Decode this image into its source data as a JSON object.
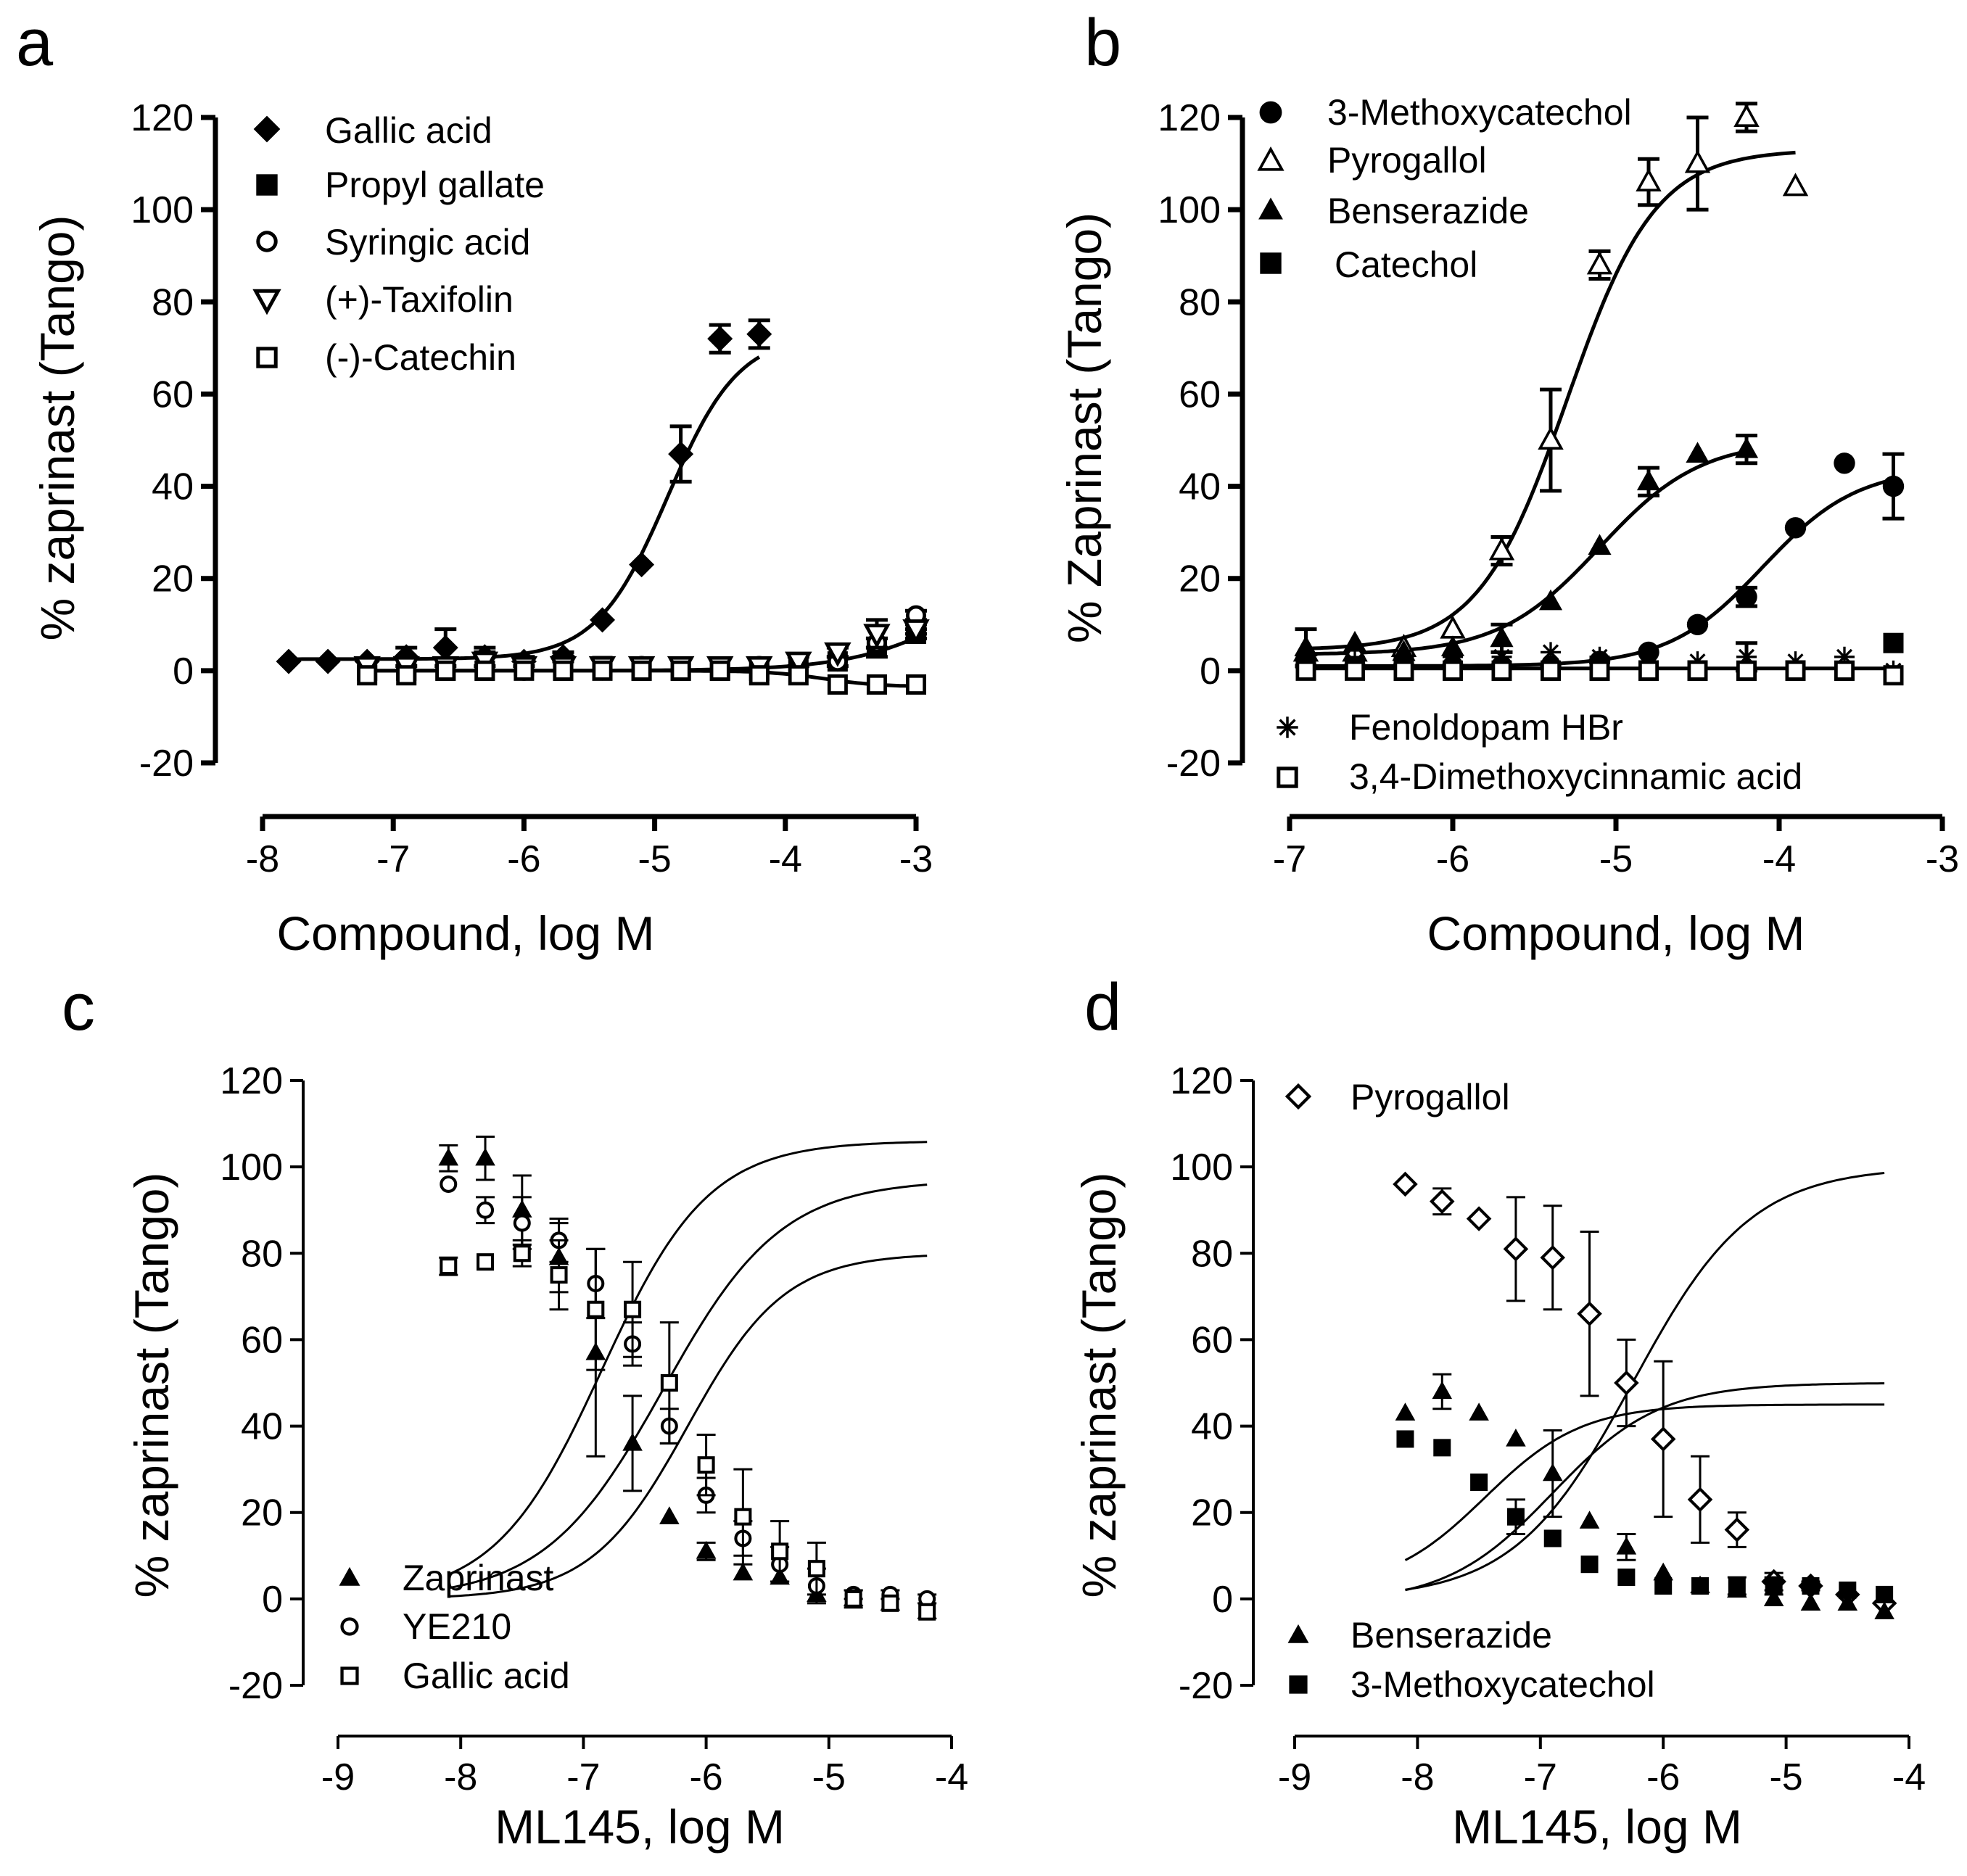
{
  "figure": {
    "panels": [
      "a",
      "b",
      "c",
      "d"
    ]
  },
  "chart_data": [
    {
      "panel": "a",
      "type": "scatter",
      "xlabel": "Compound, log M",
      "ylabel": "% zaprinast (Tango)",
      "xlim": [
        -8,
        -3
      ],
      "ylim": [
        -20,
        120
      ],
      "xticks": [
        -8,
        -7,
        -6,
        -5,
        -4,
        -3
      ],
      "yticks": [
        -20,
        0,
        20,
        40,
        60,
        80,
        100,
        120
      ],
      "legend_position": "top-left",
      "series": [
        {
          "name": "Gallic acid",
          "marker": "diamond-filled",
          "x": [
            -7.8,
            -7.5,
            -7.2,
            -6.9,
            -6.6,
            -6.3,
            -6.0,
            -5.7,
            -5.4,
            -5.1,
            -4.8,
            -4.5,
            -4.2
          ],
          "y": [
            2,
            2,
            2,
            3,
            5,
            3,
            2,
            3,
            11,
            23,
            47,
            72,
            73
          ],
          "err": [
            0,
            0,
            0,
            2,
            4,
            2,
            1,
            1,
            0,
            0,
            6,
            3,
            3
          ],
          "fit": {
            "bottom": 2.5,
            "top": 73,
            "logec50": -4.9,
            "hill": 1.6,
            "from": -7.8,
            "to": -4.2
          }
        },
        {
          "name": "Propyl gallate",
          "marker": "square-filled",
          "x": [
            -7.2,
            -6.9,
            -6.6,
            -6.3,
            -6.0,
            -5.7,
            -5.4,
            -5.1,
            -4.8,
            -4.5,
            -4.2,
            -3.9,
            -3.6,
            -3.3,
            -3.0
          ],
          "y": [
            0,
            0,
            0,
            0,
            1,
            0,
            1,
            0,
            0,
            0,
            0,
            1,
            2,
            5,
            8
          ],
          "err": [
            0,
            0,
            0,
            0,
            0,
            0,
            0,
            0,
            0,
            0,
            0,
            0,
            1,
            2,
            1
          ],
          "fit": {
            "bottom": 0,
            "top": 30,
            "logec50": -2.5,
            "hill": 1.0,
            "from": -7.2,
            "to": -3.0
          }
        },
        {
          "name": "Syringic acid",
          "marker": "circle-open",
          "x": [
            -7.2,
            -6.9,
            -6.6,
            -6.3,
            -6.0,
            -5.7,
            -5.4,
            -5.1,
            -4.8,
            -4.5,
            -4.2,
            -3.9,
            -3.6,
            -3.3,
            -3.0
          ],
          "y": [
            0,
            0,
            0,
            1,
            0,
            0,
            1,
            1,
            0,
            0,
            1,
            1,
            2,
            6,
            12
          ],
          "err": [
            0,
            0,
            0,
            0,
            0,
            0,
            0,
            0,
            0,
            0,
            0,
            0,
            0,
            1,
            1
          ]
        },
        {
          "name": "(+)-Taxifolin",
          "marker": "triangle-down-open",
          "x": [
            -7.2,
            -6.9,
            -6.6,
            -6.3,
            -6.0,
            -5.7,
            -5.4,
            -5.1,
            -4.8,
            -4.5,
            -4.2,
            -3.9,
            -3.6,
            -3.3,
            -3.0
          ],
          "y": [
            1,
            1,
            1,
            2,
            1,
            1,
            1,
            1,
            1,
            1,
            1,
            2,
            4,
            8,
            9
          ],
          "err": [
            0,
            0,
            0,
            2,
            0,
            0,
            0,
            0,
            0,
            0,
            0,
            1,
            1,
            3,
            1
          ]
        },
        {
          "name": "(-)-Catechin",
          "marker": "square-open",
          "x": [
            -7.2,
            -6.9,
            -6.6,
            -6.3,
            -6.0,
            -5.7,
            -5.4,
            -5.1,
            -4.8,
            -4.5,
            -4.2,
            -3.9,
            -3.6,
            -3.3,
            -3.0
          ],
          "y": [
            -1,
            -1,
            0,
            0,
            0,
            0,
            0,
            0,
            0,
            0,
            -1,
            -1,
            -3,
            -3,
            -3
          ],
          "err": [
            0,
            0,
            0,
            0,
            0,
            0,
            0,
            0,
            0,
            0,
            0,
            0,
            0,
            0,
            0
          ],
          "fit": {
            "bottom": 0,
            "top": -3.5,
            "logec50": -3.7,
            "hill": 2.0,
            "from": -7.2,
            "to": -3.0
          }
        }
      ]
    },
    {
      "panel": "b",
      "type": "scatter",
      "xlabel": "Compound, log M",
      "ylabel": "% Zaprinast (Tango)",
      "xlim": [
        -7,
        -3
      ],
      "ylim": [
        -20,
        120
      ],
      "xticks": [
        -7,
        -6,
        -5,
        -4,
        -3
      ],
      "yticks": [
        -20,
        0,
        20,
        40,
        60,
        80,
        100,
        120
      ],
      "legend_position": "top-left and bottom-left",
      "series": [
        {
          "name": "3-Methoxycatechol",
          "marker": "circle-filled",
          "x": [
            -6.9,
            -6.6,
            -6.3,
            -6.0,
            -5.7,
            -5.4,
            -5.1,
            -4.8,
            -4.5,
            -4.2,
            -3.9,
            -3.6,
            -3.3
          ],
          "y": [
            1,
            1,
            1,
            1,
            1,
            1,
            2,
            4,
            10,
            16,
            31,
            45,
            40
          ],
          "err": [
            0,
            0,
            0,
            0,
            0,
            0,
            0,
            0,
            0,
            2,
            0,
            0,
            7
          ],
          "fit": {
            "bottom": 1,
            "top": 44,
            "logec50": -4.1,
            "hill": 1.5,
            "from": -6.9,
            "to": -3.3
          }
        },
        {
          "name": "Pyrogallol",
          "marker": "triangle-up-open",
          "x": [
            -6.9,
            -6.6,
            -6.3,
            -6.0,
            -5.7,
            -5.4,
            -5.1,
            -4.8,
            -4.5,
            -4.2,
            -3.9
          ],
          "y": [
            4,
            4,
            5,
            9,
            26,
            50,
            88,
            106,
            110,
            120,
            105
          ],
          "err": [
            0,
            0,
            0,
            0,
            3,
            11,
            3,
            5,
            10,
            3,
            0
          ],
          "fit": {
            "bottom": 4.5,
            "top": 113,
            "logec50": -5.3,
            "hill": 1.6,
            "from": -6.9,
            "to": -3.9
          }
        },
        {
          "name": "Benserazide",
          "marker": "triangle-up-filled",
          "x": [
            -6.9,
            -6.6,
            -6.3,
            -6.0,
            -5.7,
            -5.4,
            -5.1,
            -4.8,
            -4.5,
            -4.2
          ],
          "y": [
            5,
            6,
            4,
            5,
            7,
            15,
            27,
            41,
            47,
            48
          ],
          "err": [
            4,
            0,
            0,
            0,
            3,
            0,
            0,
            3,
            0,
            3
          ],
          "fit": {
            "bottom": 3.5,
            "top": 50,
            "logec50": -5.1,
            "hill": 1.4,
            "from": -6.9,
            "to": -4.2
          }
        },
        {
          "name": "Catechol",
          "marker": "square-filled",
          "x": [
            -6.9,
            -6.6,
            -6.3,
            -6.0,
            -5.7,
            -5.4,
            -5.1,
            -4.8,
            -4.5,
            -4.2,
            -3.9,
            -3.6,
            -3.3
          ],
          "y": [
            1,
            1,
            0,
            0,
            0,
            0,
            0,
            0,
            0,
            0,
            0,
            0,
            6
          ],
          "err": [
            0,
            0,
            0,
            0,
            0,
            0,
            0,
            0,
            0,
            0,
            0,
            0,
            0
          ]
        },
        {
          "name": "Fenoldopam HBr",
          "marker": "asterisk",
          "x": [
            -6.9,
            -6.6,
            -6.3,
            -6.0,
            -5.7,
            -5.4,
            -5.1,
            -4.8,
            -4.5,
            -4.2,
            -3.9,
            -3.6,
            -3.3
          ],
          "y": [
            2,
            2,
            3,
            3,
            3,
            4,
            3,
            2,
            2,
            3,
            2,
            3,
            0
          ],
          "err": [
            0,
            0,
            0,
            0,
            0,
            0,
            0,
            0,
            0,
            3,
            0,
            0,
            0
          ]
        },
        {
          "name": "3,4-Dimethoxycinnamic acid",
          "marker": "square-open",
          "x": [
            -6.9,
            -6.6,
            -6.3,
            -6.0,
            -5.7,
            -5.4,
            -5.1,
            -4.8,
            -4.5,
            -4.2,
            -3.9,
            -3.6,
            -3.3
          ],
          "y": [
            0,
            0,
            0,
            0,
            0,
            0,
            0,
            0,
            0,
            0,
            0,
            0,
            -1
          ],
          "err": [
            0,
            0,
            0,
            0,
            0,
            0,
            0,
            0,
            0,
            0,
            0,
            0,
            0
          ],
          "fit": {
            "bottom": 0.5,
            "top": 0.5,
            "logec50": -5,
            "hill": 1,
            "from": -6.9,
            "to": -3.3
          }
        }
      ]
    },
    {
      "panel": "c",
      "type": "scatter",
      "xlabel": "ML145, log M",
      "ylabel": "% zaprinast (Tango)",
      "xlim": [
        -9,
        -4
      ],
      "ylim": [
        -20,
        120
      ],
      "xticks": [
        -9,
        -8,
        -7,
        -6,
        -5,
        -4
      ],
      "yticks": [
        -20,
        0,
        20,
        40,
        60,
        80,
        100,
        120
      ],
      "legend_position": "bottom-left",
      "series": [
        {
          "name": "Zaprinast",
          "marker": "triangle-up-filled",
          "x": [
            -8.1,
            -7.8,
            -7.5,
            -7.2,
            -6.9,
            -6.6,
            -6.3,
            -6.0,
            -5.7,
            -5.4,
            -5.1,
            -4.8,
            -4.5,
            -4.2
          ],
          "y": [
            102,
            102,
            90,
            79,
            57,
            36,
            19,
            11,
            6,
            5,
            1,
            0,
            -1,
            -3
          ],
          "err": [
            3,
            5,
            8,
            8,
            24,
            11,
            0,
            2,
            0,
            0,
            0,
            0,
            0,
            0
          ],
          "fit": {
            "bottom": 0,
            "top": 106,
            "logec50": -6.85,
            "hill": 1.0,
            "from": -8.1,
            "to": -4.2
          }
        },
        {
          "name": "YE210",
          "marker": "circle-open",
          "x": [
            -8.1,
            -7.8,
            -7.5,
            -7.2,
            -6.9,
            -6.6,
            -6.3,
            -6.0,
            -5.7,
            -5.4,
            -5.1,
            -4.8,
            -4.5,
            -4.2
          ],
          "y": [
            96,
            90,
            87,
            83,
            73,
            59,
            40,
            24,
            14,
            8,
            3,
            1,
            1,
            0
          ],
          "err": [
            0,
            3,
            6,
            5,
            8,
            5,
            4,
            4,
            4,
            4,
            4,
            1,
            1,
            1
          ],
          "fit": {
            "bottom": 0,
            "top": 97,
            "logec50": -6.35,
            "hill": 0.9,
            "from": -8.1,
            "to": -4.2
          }
        },
        {
          "name": "Gallic acid",
          "marker": "square-open",
          "x": [
            -8.1,
            -7.8,
            -7.5,
            -7.2,
            -6.9,
            -6.6,
            -6.3,
            -6.0,
            -5.7,
            -5.4,
            -5.1,
            -4.8,
            -4.5,
            -4.2
          ],
          "y": [
            77,
            78,
            80,
            75,
            67,
            67,
            50,
            31,
            19,
            11,
            7,
            0,
            -1,
            -3
          ],
          "err": [
            2,
            0,
            3,
            8,
            14,
            11,
            14,
            7,
            11,
            7,
            6,
            2,
            0,
            0
          ],
          "fit": {
            "bottom": 0,
            "top": 80,
            "logec50": -6.15,
            "hill": 1.1,
            "from": -8.1,
            "to": -4.2
          }
        }
      ]
    },
    {
      "panel": "d",
      "type": "scatter",
      "xlabel": "ML145, log M",
      "ylabel": "% zaprinast (Tango)",
      "xlim": [
        -9,
        -4
      ],
      "ylim": [
        -20,
        120
      ],
      "xticks": [
        -9,
        -8,
        -7,
        -6,
        -5,
        -4
      ],
      "yticks": [
        -20,
        0,
        20,
        40,
        60,
        80,
        100,
        120
      ],
      "legend_position": "top-left and bottom-left",
      "series": [
        {
          "name": "Pyrogallol",
          "marker": "diamond-open",
          "x": [
            -8.1,
            -7.8,
            -7.5,
            -7.2,
            -6.9,
            -6.6,
            -6.3,
            -6.0,
            -5.7,
            -5.4,
            -5.1,
            -4.8,
            -4.5,
            -4.2
          ],
          "y": [
            96,
            92,
            88,
            81,
            79,
            66,
            50,
            37,
            23,
            16,
            4,
            3,
            1,
            -1
          ],
          "err": [
            0,
            3,
            0,
            12,
            12,
            19,
            10,
            18,
            10,
            4,
            2,
            1,
            0,
            0
          ],
          "fit": {
            "bottom": 0,
            "top": 100,
            "logec50": -6.25,
            "hill": 0.9,
            "from": -8.1,
            "to": -4.2
          }
        },
        {
          "name": "Benserazide",
          "marker": "triangle-up-filled",
          "x": [
            -8.1,
            -7.8,
            -7.5,
            -7.2,
            -6.9,
            -6.6,
            -6.3,
            -6.0,
            -5.7,
            -5.4,
            -5.1,
            -4.8,
            -4.5,
            -4.2
          ],
          "y": [
            43,
            48,
            43,
            37,
            29,
            18,
            12,
            6,
            3,
            2,
            0,
            -1,
            -1,
            -3
          ],
          "err": [
            0,
            4,
            0,
            0,
            10,
            0,
            3,
            0,
            0,
            0,
            0,
            0,
            0,
            0
          ],
          "fit": {
            "bottom": -1,
            "top": 50,
            "logec50": -6.9,
            "hill": 1.0,
            "from": -8.1,
            "to": -4.2
          }
        },
        {
          "name": "3-Methoxycatechol",
          "marker": "square-filled",
          "x": [
            -8.1,
            -7.8,
            -7.5,
            -7.2,
            -6.9,
            -6.6,
            -6.3,
            -6.0,
            -5.7,
            -5.4,
            -5.1,
            -4.8,
            -4.5,
            -4.2
          ],
          "y": [
            37,
            35,
            27,
            19,
            14,
            8,
            5,
            3,
            3,
            3,
            3,
            3,
            2,
            1
          ],
          "err": [
            0,
            0,
            0,
            4,
            0,
            0,
            0,
            0,
            0,
            2,
            2,
            0,
            0,
            0
          ],
          "fit": {
            "bottom": 2,
            "top": 45,
            "logec50": -7.45,
            "hill": 1.1,
            "from": -8.1,
            "to": -4.2
          }
        }
      ]
    }
  ]
}
